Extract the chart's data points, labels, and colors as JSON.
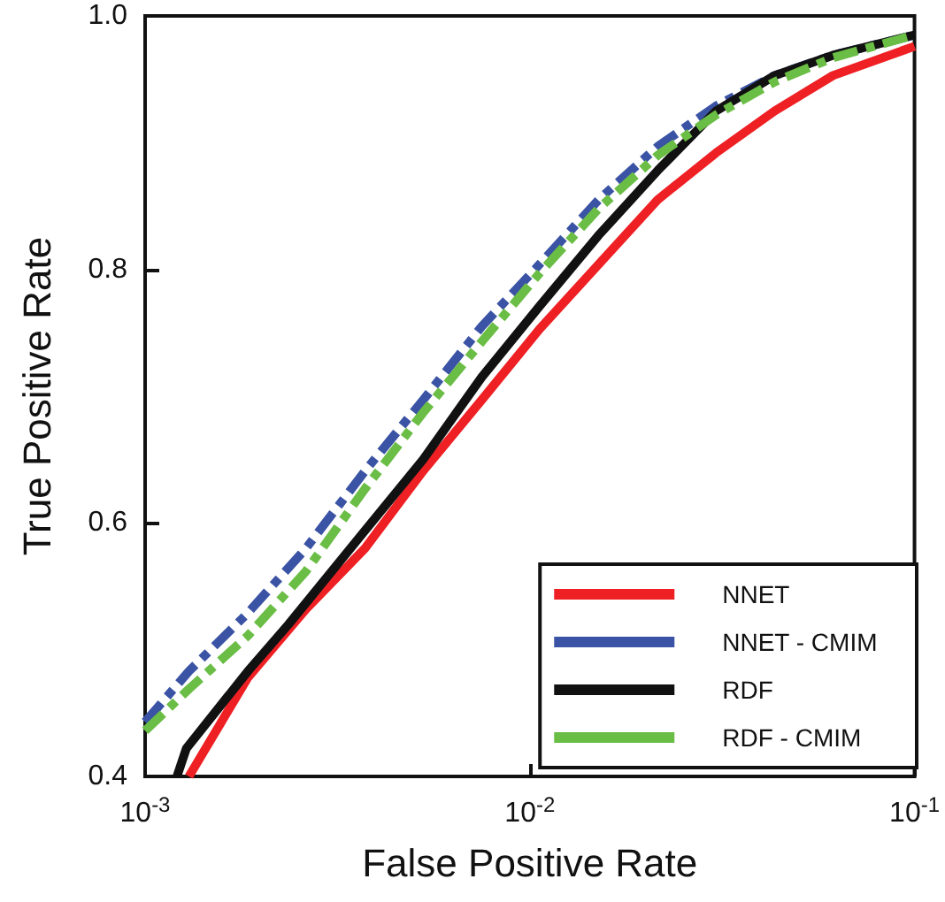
{
  "chart_data": {
    "type": "line",
    "xlabel": "False Positive Rate",
    "ylabel": "True Positive Rate",
    "log": "x",
    "xlim": [
      0.001,
      0.1
    ],
    "ylim": [
      0.4,
      1.0
    ],
    "xticks": [
      {
        "value": 0.001,
        "label": "10$^{-3}$"
      },
      {
        "value": 0.01,
        "label": "10$^{-2}$"
      },
      {
        "value": 0.1,
        "label": "10$^{-1}$"
      }
    ],
    "yticks": [
      {
        "value": 0.4,
        "label": "0.4"
      },
      {
        "value": 0.6,
        "label": "0.6"
      },
      {
        "value": 0.8,
        "label": "0.8"
      },
      {
        "value": 1.0,
        "label": "1.0"
      }
    ],
    "x": [
      0.001,
      0.0013,
      0.00185,
      0.00262,
      0.00373,
      0.00528,
      0.0075,
      0.0106,
      0.0151,
      0.0215,
      0.0305,
      0.0433,
      0.0614,
      0.1
    ],
    "grid": false,
    "legend": "bottom right",
    "marker": "none",
    "series": [
      {
        "name": "NNET",
        "color": "#ee2024",
        "line_style": "solid",
        "x": [
          0.0013,
          0.00185,
          0.00262,
          0.00373,
          0.00528,
          0.0075,
          0.0106,
          0.0151,
          0.0215,
          0.0305,
          0.0433,
          0.0614,
          0.1
        ],
        "values": [
          0.4,
          0.478,
          0.532,
          0.58,
          0.641,
          0.697,
          0.753,
          0.804,
          0.855,
          0.892,
          0.925,
          0.953,
          0.976
        ]
      },
      {
        "name": "NNET - CMIM",
        "color": "#3a53a4",
        "line_style": "dashed",
        "values": [
          0.443,
          0.483,
          0.529,
          0.58,
          0.641,
          0.697,
          0.755,
          0.804,
          0.855,
          0.897,
          0.929,
          0.953,
          0.969,
          0.985
        ]
      },
      {
        "name": "RDF",
        "color": "#111111",
        "line_style": "solid",
        "x": [
          0.00121,
          0.00128,
          0.00185,
          0.00236,
          0.00373,
          0.00528,
          0.0075,
          0.0106,
          0.0151,
          0.0215,
          0.0305,
          0.0433,
          0.0614,
          0.1
        ],
        "values": [
          0.4,
          0.422,
          0.483,
          0.52,
          0.594,
          0.65,
          0.715,
          0.771,
          0.827,
          0.878,
          0.925,
          0.953,
          0.969,
          0.985
        ]
      },
      {
        "name": "RDF - CMIM",
        "color": "#6abd45",
        "line_style": "dashed",
        "values": [
          0.436,
          0.469,
          0.511,
          0.562,
          0.627,
          0.687,
          0.743,
          0.797,
          0.848,
          0.89,
          0.922,
          0.948,
          0.967,
          0.985
        ]
      }
    ]
  }
}
